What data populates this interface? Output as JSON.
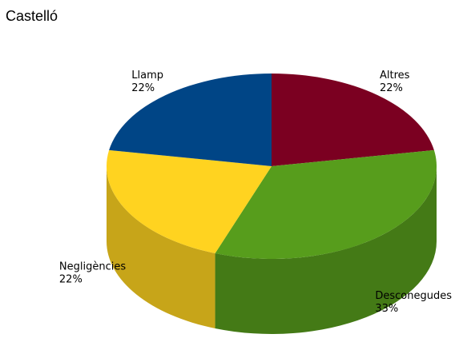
{
  "chart_data": {
    "type": "pie",
    "title": "Castelló",
    "style": "3d",
    "slices": [
      {
        "name": "Altres",
        "value": 22,
        "value_label": "22%",
        "color": "#7b0021"
      },
      {
        "name": "Desconegudes",
        "value": 33,
        "value_label": "33%",
        "color": "#579d1c"
      },
      {
        "name": "Negligències",
        "value": 22,
        "value_label": "22%",
        "color": "#ffd320"
      },
      {
        "name": "Llamp",
        "value": 22,
        "value_label": "22%",
        "color": "#004586"
      }
    ]
  }
}
